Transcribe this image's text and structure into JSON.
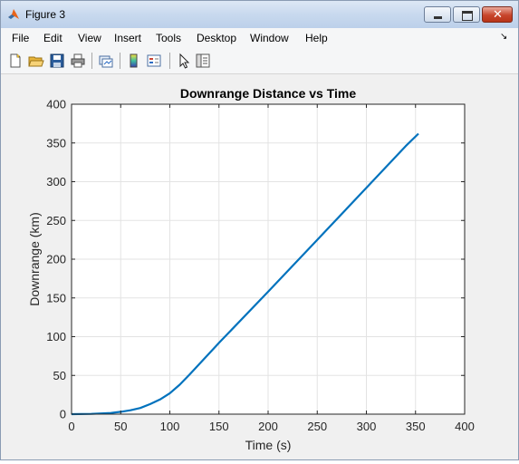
{
  "window": {
    "title": "Figure 3",
    "minimize_icon": "minimize-icon",
    "maximize_icon": "maximize-icon",
    "close_icon": "close-icon"
  },
  "menu": {
    "items": [
      "File",
      "Edit",
      "View",
      "Insert",
      "Tools",
      "Desktop",
      "Window",
      "Help"
    ],
    "overflow_arrow": "↘"
  },
  "toolbar": {
    "icons": [
      "new-figure-icon",
      "open-file-icon",
      "save-icon",
      "print-icon",
      "link-plot-icon",
      "colorbar-icon",
      "legend-icon",
      "edit-plot-pointer-icon",
      "property-editor-icon"
    ]
  },
  "colors": {
    "line": "#0072bd",
    "grid": "#e3e3e3",
    "axes_bg": "#ffffff",
    "figure_bg": "#f0f0f0"
  },
  "chart_data": {
    "type": "line",
    "title": "Downrange Distance vs Time",
    "xlabel": "Time (s)",
    "ylabel": "Downrange (km)",
    "xlim": [
      0,
      400
    ],
    "ylim": [
      0,
      400
    ],
    "xticks": [
      "0",
      "50",
      "100",
      "150",
      "200",
      "250",
      "300",
      "350",
      "400"
    ],
    "yticks": [
      "0",
      "50",
      "100",
      "150",
      "200",
      "250",
      "300",
      "350",
      "400"
    ],
    "grid": true,
    "legend": false,
    "series": [
      {
        "x": [
          0,
          20,
          40,
          50,
          60,
          70,
          80,
          90,
          100,
          110,
          120,
          150,
          200,
          250,
          300,
          340,
          353
        ],
        "y": [
          0,
          0.3,
          1.5,
          3,
          5,
          8,
          13,
          19,
          27,
          38,
          51,
          92,
          158,
          225,
          292,
          346,
          362
        ]
      }
    ]
  }
}
